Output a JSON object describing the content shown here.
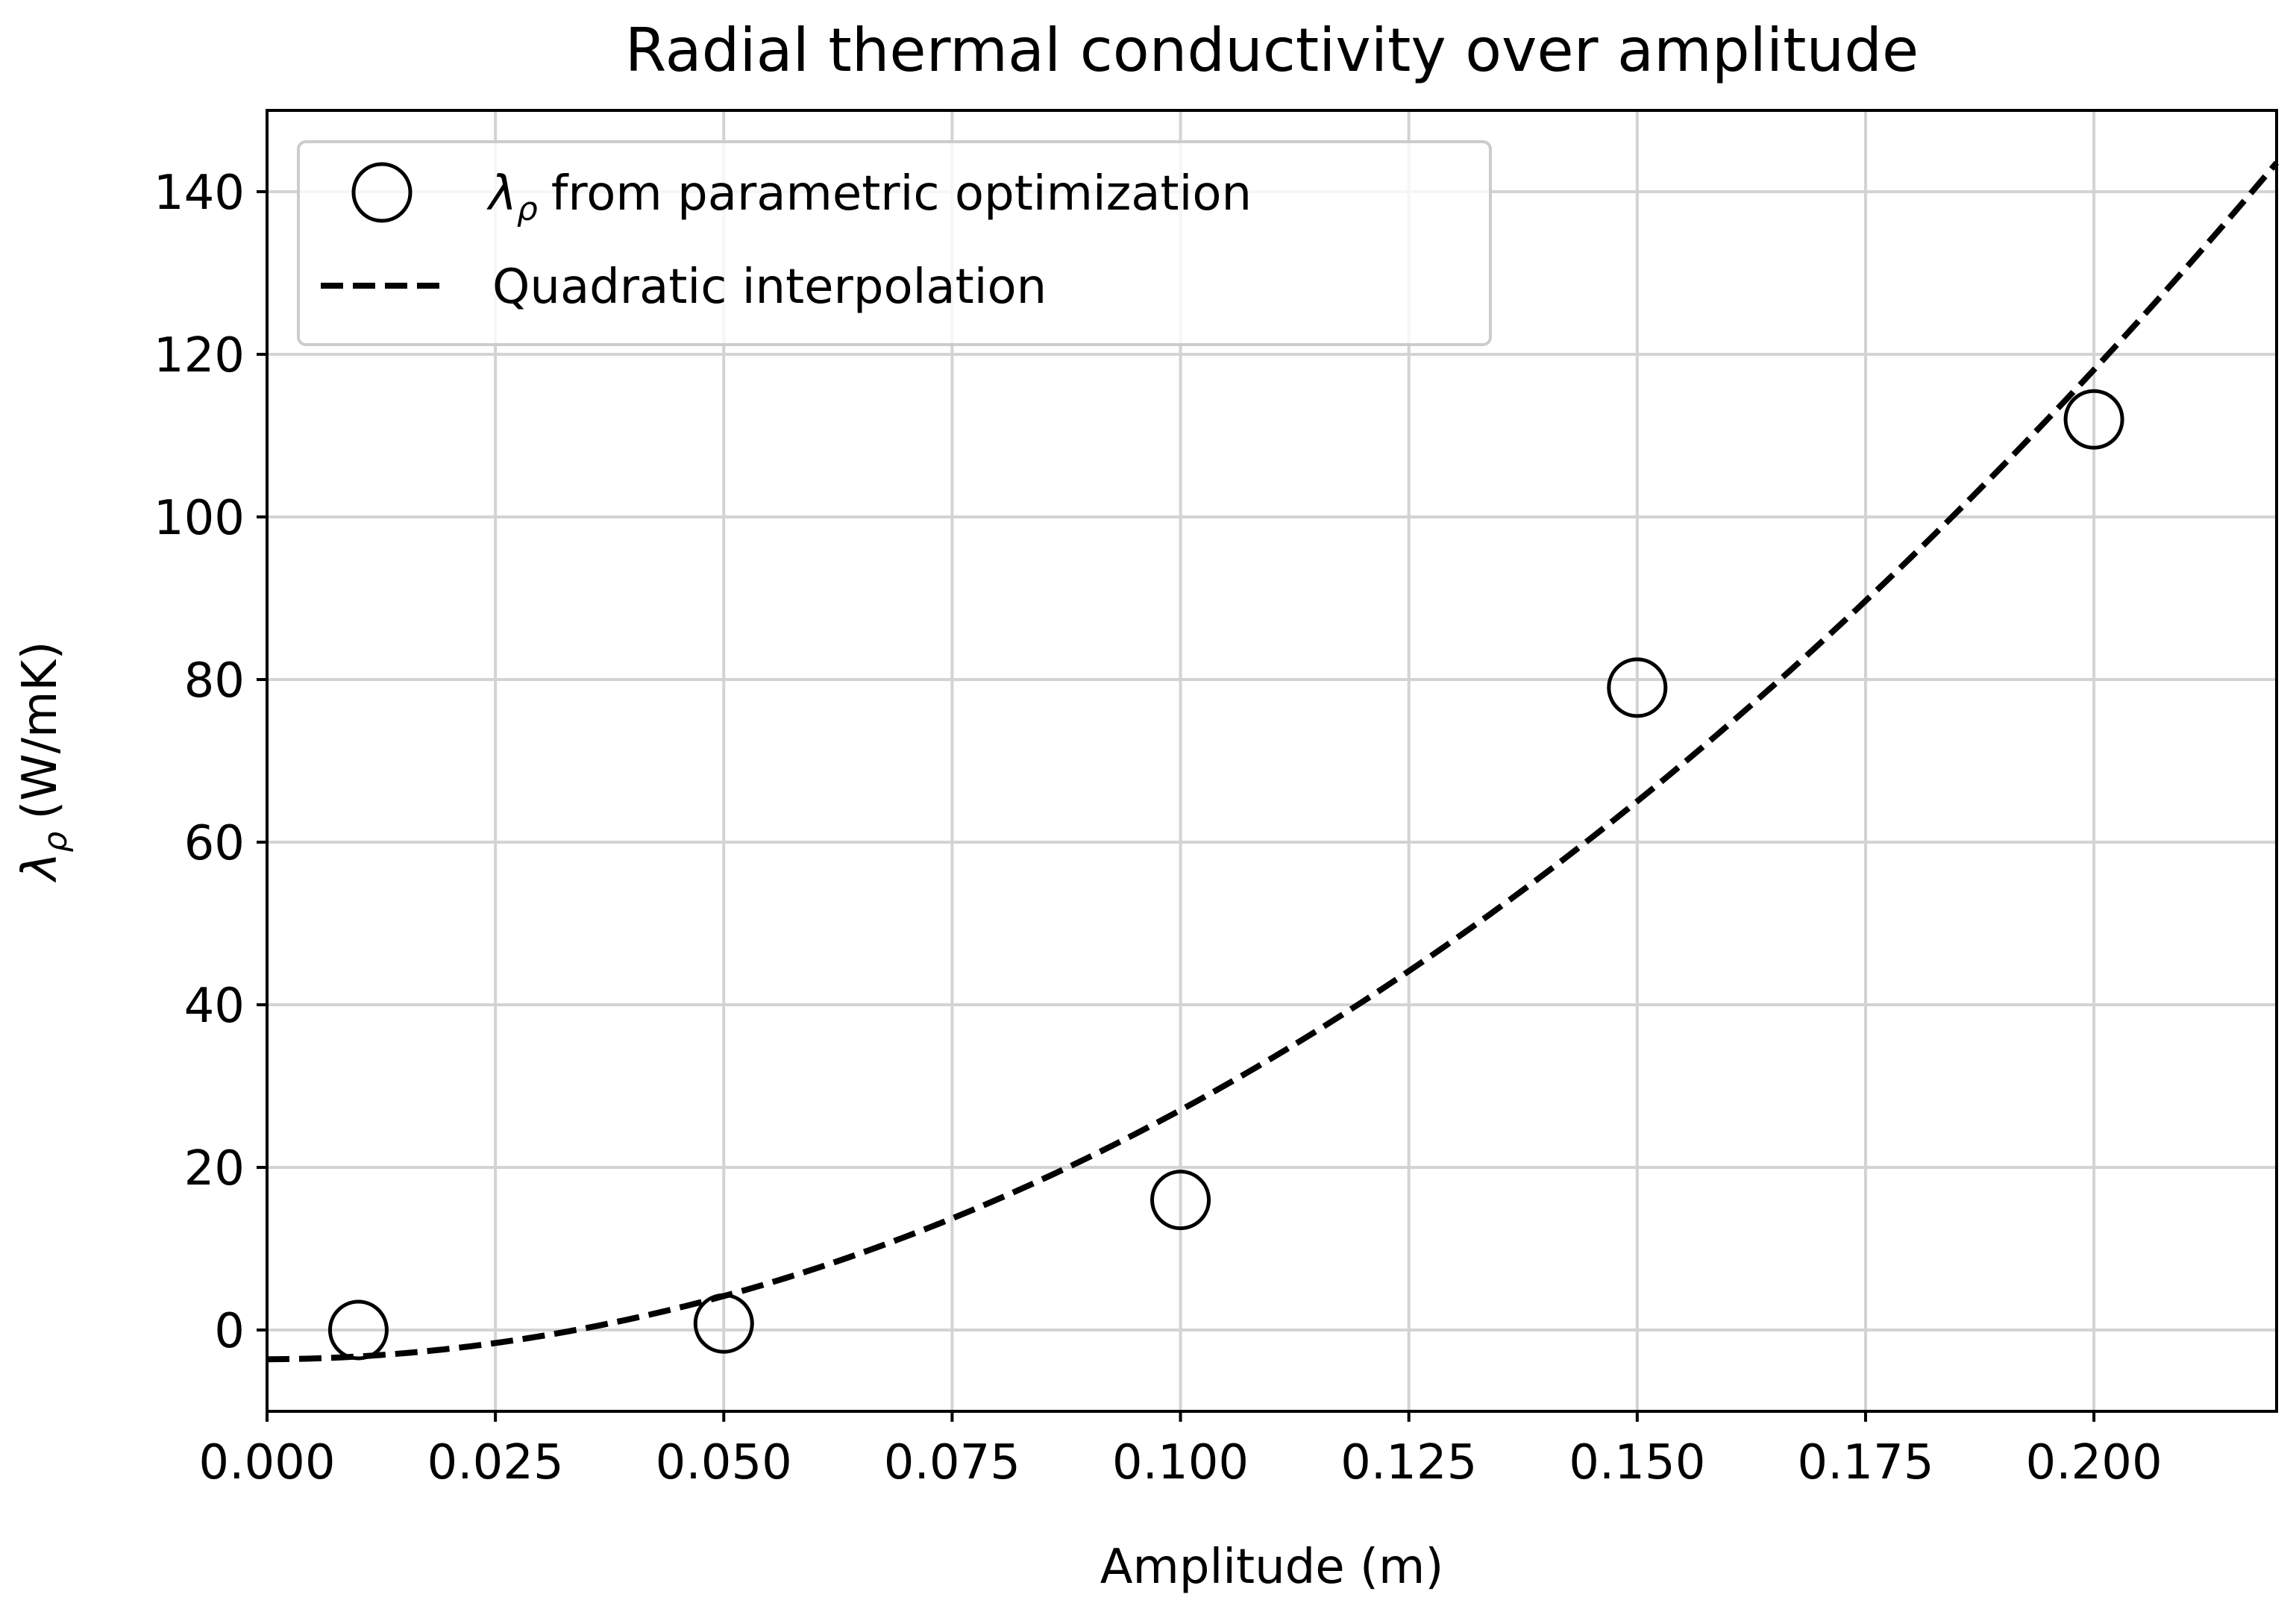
{
  "chart_data": {
    "type": "scatter",
    "title": "Radial thermal conductivity over amplitude",
    "xlabel": "Amplitude (m)",
    "ylabel": {
      "symbol": "λ",
      "subscript": "ρ",
      "unit": "(W/mK)"
    },
    "xlim": [
      0.0,
      0.22
    ],
    "ylim": [
      -10,
      150
    ],
    "grid": true,
    "legend_position": "top-left",
    "x_ticks": [
      {
        "value": 0.0,
        "label": "0.000"
      },
      {
        "value": 0.025,
        "label": "0.025"
      },
      {
        "value": 0.05,
        "label": "0.050"
      },
      {
        "value": 0.075,
        "label": "0.075"
      },
      {
        "value": 0.1,
        "label": "0.100"
      },
      {
        "value": 0.125,
        "label": "0.125"
      },
      {
        "value": 0.15,
        "label": "0.150"
      },
      {
        "value": 0.175,
        "label": "0.175"
      },
      {
        "value": 0.2,
        "label": "0.200"
      }
    ],
    "y_ticks": [
      {
        "value": 0,
        "label": "0"
      },
      {
        "value": 20,
        "label": "20"
      },
      {
        "value": 40,
        "label": "40"
      },
      {
        "value": 60,
        "label": "60"
      },
      {
        "value": 80,
        "label": "80"
      },
      {
        "value": 100,
        "label": "100"
      },
      {
        "value": 120,
        "label": "120"
      },
      {
        "value": 140,
        "label": "140"
      }
    ],
    "series": [
      {
        "name": "from parametric optimization",
        "legend_symbol": "λ",
        "legend_subscript": "ρ",
        "kind": "scatter",
        "marker": "open-circle",
        "color": "#000000",
        "x": [
          0.01,
          0.05,
          0.1,
          0.15,
          0.2
        ],
        "y": [
          0.0,
          0.8,
          16.0,
          79.0,
          112.0
        ]
      },
      {
        "name": "Quadratic interpolation",
        "kind": "line",
        "style": "dashed",
        "color": "#000000",
        "coefficients": {
          "a": 3020,
          "b": 4.5,
          "c": -3.6
        }
      }
    ]
  }
}
